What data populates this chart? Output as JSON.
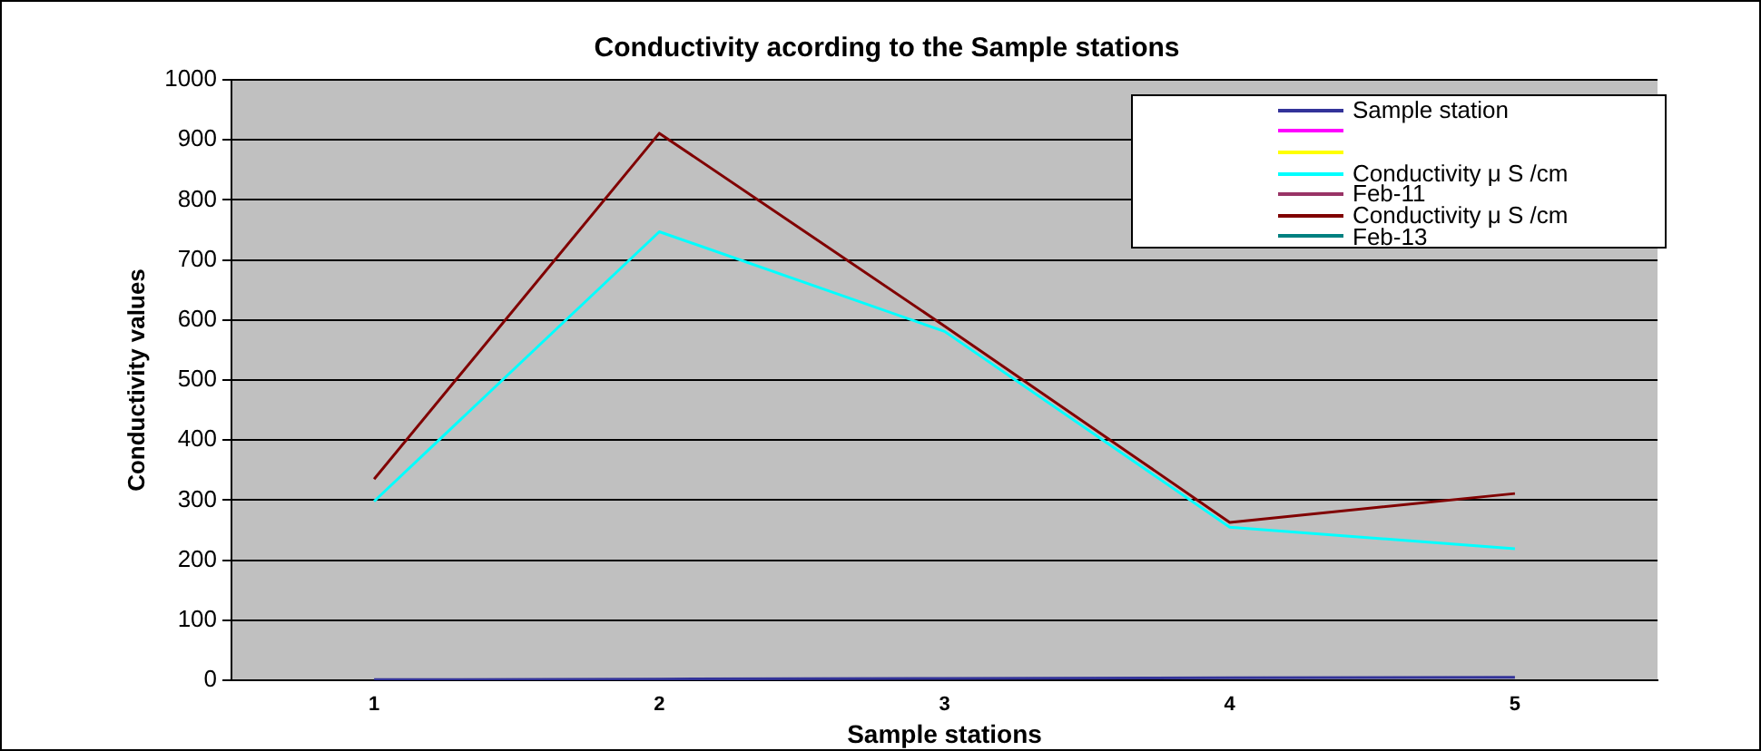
{
  "chart_data": {
    "type": "line",
    "title": "Conductivity acording to the Sample stations",
    "xlabel": "Sample stations",
    "ylabel": "Conductivity values",
    "categories": [
      "1",
      "2",
      "3",
      "4",
      "5"
    ],
    "series": [
      {
        "name": "Sample station",
        "color": "#333399",
        "values": [
          1,
          2,
          3,
          4,
          5
        ]
      },
      {
        "color": "#ff00ff",
        "values": [
          null,
          null,
          null,
          null,
          null
        ]
      },
      {
        "color": "#ffff00",
        "values": [
          null,
          null,
          null,
          null,
          null
        ]
      },
      {
        "name": "Conductivity μ S /cm",
        "color": "#00ffff",
        "values": [
          298,
          747,
          581,
          255,
          219
        ]
      },
      {
        "name": "Feb-11",
        "color": "#993366",
        "values": [
          null,
          null,
          null,
          null,
          null
        ]
      },
      {
        "name": "Conductivity μ S /cm",
        "color": "#800000",
        "values": [
          335,
          911,
          590,
          263,
          311
        ]
      },
      {
        "name": "Feb-13",
        "color": "#008080",
        "values": [
          null,
          null,
          null,
          null,
          null
        ]
      }
    ],
    "ylim": [
      0,
      1000
    ],
    "yticks": [
      0,
      100,
      200,
      300,
      400,
      500,
      600,
      700,
      800,
      900,
      1000
    ],
    "grid": "y",
    "legend": "top right",
    "marker": "none",
    "line_style": "solid"
  }
}
